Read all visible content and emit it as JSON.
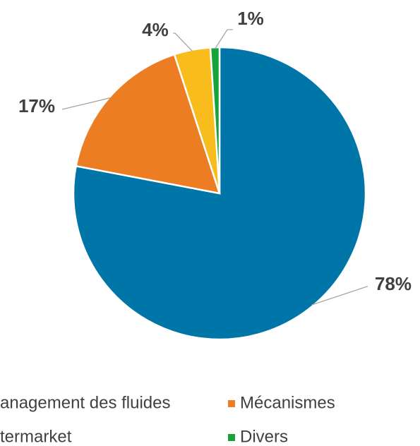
{
  "chart_data": {
    "type": "pie",
    "categories": [
      "anagement des fluides",
      "Mécanismes",
      "termarket",
      "Divers"
    ],
    "values": [
      78,
      17,
      4,
      1
    ],
    "value_labels": [
      "78%",
      "17%",
      "4%",
      "1%"
    ],
    "colors": [
      "#0076a8",
      "#ed7d22",
      "#f8bc1c",
      "#17a33a"
    ]
  }
}
